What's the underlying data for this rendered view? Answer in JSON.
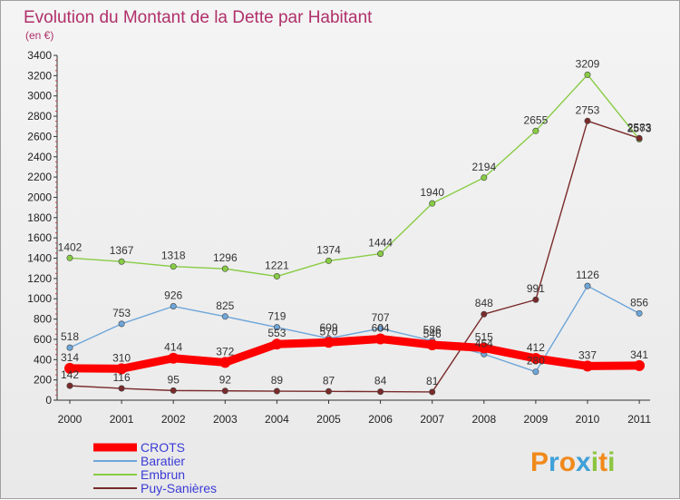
{
  "chart_data": {
    "type": "line",
    "title": "Evolution du Montant de la Dette par Habitant",
    "subtitle": "(en €)",
    "categories": [
      "2000",
      "2001",
      "2002",
      "2003",
      "2004",
      "2005",
      "2006",
      "2007",
      "2008",
      "2009",
      "2010",
      "2011"
    ],
    "ylim": [
      0,
      3400
    ],
    "yticks": [
      0,
      200,
      400,
      600,
      800,
      1000,
      1200,
      1400,
      1600,
      1800,
      2000,
      2200,
      2400,
      2600,
      2800,
      3000,
      3200,
      3400
    ],
    "grid": false,
    "legend_position": "bottom-left",
    "series": [
      {
        "name": "CROTS",
        "color": "#ff0000",
        "values": [
          314,
          310,
          414,
          372,
          553,
          570,
          604,
          546,
          515,
          412,
          337,
          341
        ]
      },
      {
        "name": "Baratier",
        "color": "#6ea6d9",
        "values": [
          518,
          753,
          926,
          825,
          719,
          609,
          707,
          586,
          454,
          280,
          1126,
          856
        ]
      },
      {
        "name": "Embrun",
        "color": "#88cc44",
        "values": [
          1402,
          1367,
          1318,
          1296,
          1221,
          1374,
          1444,
          1940,
          2194,
          2655,
          3209,
          2573
        ]
      },
      {
        "name": "Puy-Sanières",
        "color": "#7a2a2a",
        "values": [
          142,
          116,
          95,
          92,
          89,
          87,
          84,
          81,
          848,
          991,
          2753,
          2583
        ]
      }
    ]
  },
  "logo": {
    "text": "Proxiti",
    "colors": [
      "#f08a1c",
      "#3fa0d8",
      "#f08a1c",
      "#3fa0d8",
      "#8bc53f",
      "#f08a1c",
      "#8bc53f"
    ]
  }
}
